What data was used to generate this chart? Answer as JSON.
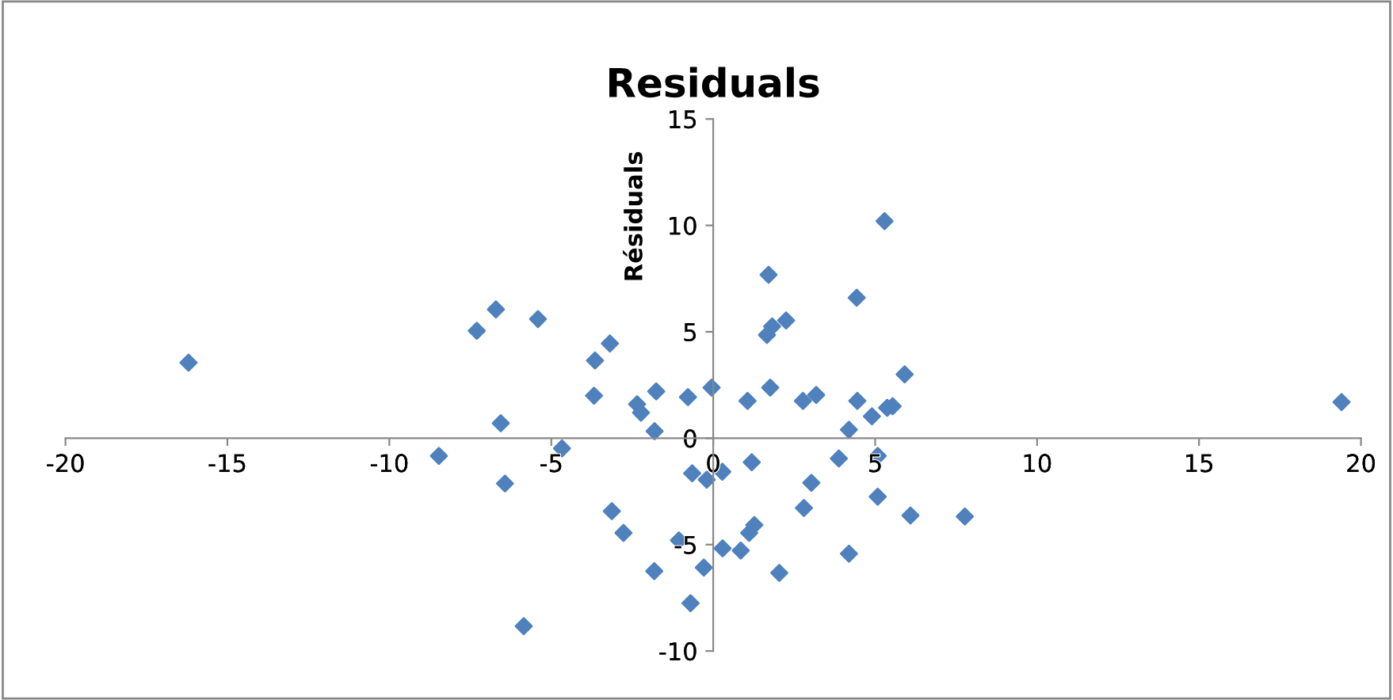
{
  "chart_data": {
    "type": "scatter",
    "title": "Residuals",
    "ylabel": "Résiduals",
    "x": [
      -16.2,
      -8.47,
      -7.3,
      -6.71,
      -6.56,
      -6.43,
      -5.41,
      -4.67,
      -5.85,
      -3.65,
      -3.68,
      -3.19,
      -3.13,
      -2.77,
      -2.35,
      -2.23,
      -1.76,
      -1.81,
      -1.82,
      -0.78,
      -0.65,
      -1.06,
      -0.7,
      -0.29,
      -0.2,
      -0.05,
      0.28,
      0.29,
      0.85,
      1.06,
      1.19,
      1.11,
      1.27,
      1.71,
      1.66,
      1.82,
      1.76,
      2.25,
      2.77,
      3.18,
      3.03,
      2.8,
      2.04,
      3.88,
      4.43,
      4.45,
      4.19,
      4.19,
      4.9,
      5.29,
      5.37,
      5.54,
      5.08,
      5.08,
      5.91,
      6.09,
      7.77,
      19.4
    ],
    "values": [
      3.55,
      -0.83,
      5.05,
      6.05,
      0.7,
      -2.13,
      5.6,
      -0.48,
      -8.83,
      3.65,
      2.0,
      4.45,
      -3.43,
      -4.45,
      1.6,
      1.2,
      2.2,
      0.33,
      -6.25,
      1.93,
      -1.65,
      -4.8,
      -7.75,
      -6.08,
      -1.95,
      2.38,
      -1.58,
      -5.18,
      -5.28,
      1.75,
      -1.13,
      -4.45,
      -4.08,
      7.68,
      4.85,
      5.25,
      2.38,
      5.53,
      1.75,
      2.03,
      -2.1,
      -3.28,
      -6.33,
      -0.95,
      6.6,
      1.75,
      0.4,
      -5.43,
      1.03,
      10.2,
      1.43,
      1.5,
      -0.83,
      -2.75,
      3.0,
      -3.63,
      -3.68,
      1.7
    ],
    "color": "#4f81bd",
    "marker": "diamond",
    "xlim": [
      -20,
      20
    ],
    "xticks": [
      -20,
      -15,
      -10,
      -5,
      0,
      5,
      10,
      15,
      20
    ],
    "ylim": [
      -10,
      15
    ],
    "yticks": [
      -10,
      -5,
      0,
      5,
      10,
      15
    ],
    "grid": false,
    "legend": false
  }
}
